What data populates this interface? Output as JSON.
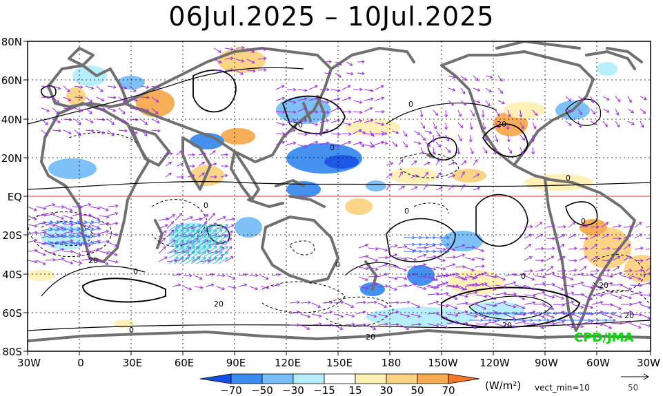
{
  "title": "06Jul.2025 – 10Jul.2025",
  "lat_labels": [
    "80N",
    "60N",
    "40N",
    "20N",
    "EQ",
    "20S",
    "40S",
    "60S",
    "80S"
  ],
  "lon_labels": [
    "30W",
    "0",
    "30E",
    "60E",
    "90E",
    "120E",
    "150E",
    "180",
    "150W",
    "120W",
    "90W",
    "60W",
    "30W"
  ],
  "colorbar": {
    "tick_labels": [
      "−70",
      "−50",
      "−30",
      "−15",
      "15",
      "30",
      "50",
      "70"
    ],
    "colors": [
      "#1450e6",
      "#3c8cf0",
      "#78bef8",
      "#b4eefc",
      "#ffffff",
      "#fff0b4",
      "#fcd282",
      "#f8aa50",
      "#f07828"
    ]
  },
  "units_label": "(W/m²)",
  "vector_min_label": "vect_min=10",
  "reference_vector_value": "50",
  "credit": "CPD/JMA",
  "contour_labels": [
    "0",
    "20",
    "20",
    "0",
    "0",
    "20",
    "0",
    "0",
    "20",
    "0",
    "0",
    "20",
    "20",
    "0",
    "20",
    "0",
    "0",
    "20"
  ]
}
